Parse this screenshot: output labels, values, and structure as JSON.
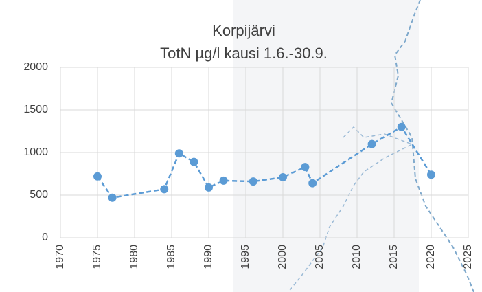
{
  "chart_data": {
    "type": "line",
    "title": "Korpijärvi",
    "subtitle": "TotN µg/l kausi 1.6.-30.9.",
    "x": [
      1975,
      1977,
      1984,
      1986,
      1988,
      1990,
      1992,
      1996,
      2000,
      2003,
      2004,
      2012,
      2016,
      2020
    ],
    "series": [
      {
        "name": "TotN",
        "color": "#5b9bd5",
        "values": [
          720,
          470,
          570,
          990,
          890,
          590,
          670,
          660,
          710,
          830,
          640,
          1100,
          1300,
          740
        ]
      }
    ],
    "xlim": [
      1970,
      2025
    ],
    "xticks": [
      1970,
      1975,
      1980,
      1985,
      1990,
      1995,
      2000,
      2005,
      2010,
      2015,
      2020,
      2025
    ],
    "ylim": [
      0,
      2000
    ],
    "yticks": [
      0,
      500,
      1000,
      1500,
      2000
    ],
    "grid": true
  }
}
